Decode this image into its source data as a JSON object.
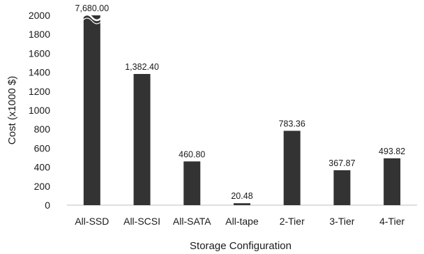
{
  "chart_data": {
    "type": "bar",
    "title": "",
    "xlabel": "Storage Configuration",
    "ylabel": "Cost (x1000 $)",
    "categories": [
      "All-SSD",
      "All-SCSI",
      "All-SATA",
      "All-tape",
      "2-Tier",
      "3-Tier",
      "4-Tier"
    ],
    "values": [
      7680.0,
      1382.4,
      460.8,
      20.48,
      783.36,
      367.87,
      493.82
    ],
    "value_labels": [
      "7,680.00",
      "1,382.40",
      "460.80",
      "20.48",
      "783.36",
      "367.87",
      "493.82"
    ],
    "ylim": [
      0,
      2000
    ],
    "yticks": [
      0,
      200,
      400,
      600,
      800,
      1000,
      1200,
      1400,
      1600,
      1800,
      2000
    ],
    "truncated_bars": [
      "All-SSD"
    ],
    "grid": false,
    "legend": "none",
    "bar_color": "#333333"
  }
}
